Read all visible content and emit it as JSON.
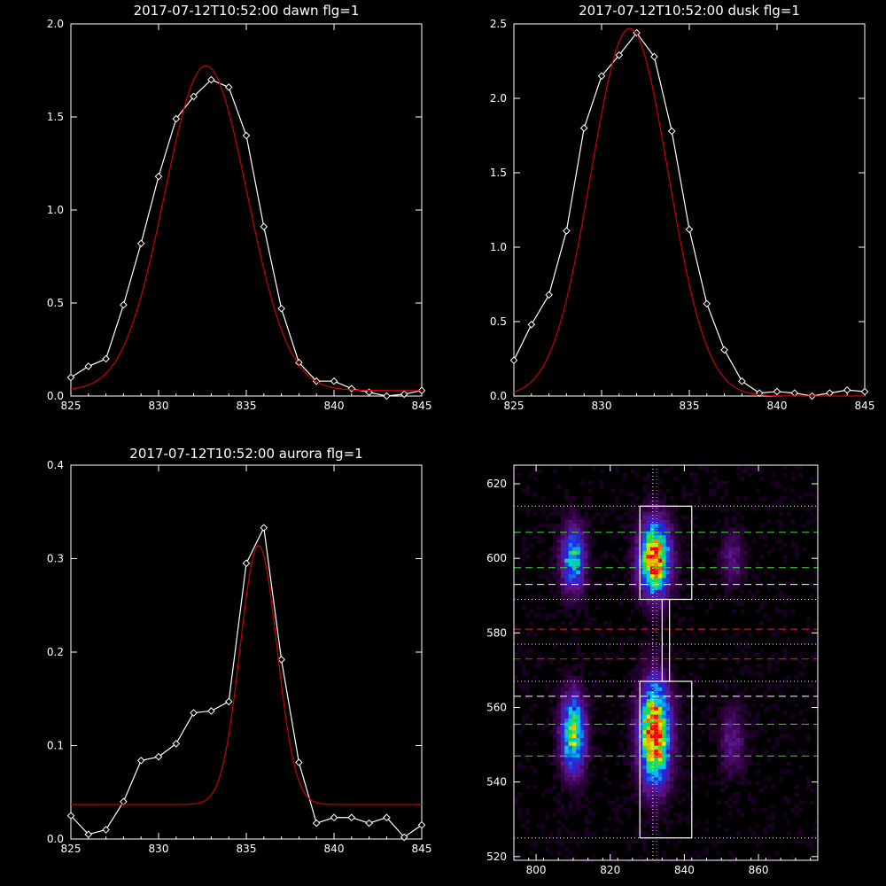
{
  "chart_data": [
    {
      "type": "line",
      "title": "2017-07-12T10:52:00 dawn flg=1",
      "xlim": [
        825,
        845
      ],
      "ylim": [
        0,
        2.0
      ],
      "xticks": [
        "825",
        "830",
        "835",
        "840",
        "845"
      ],
      "yticks": [
        "0.0",
        "0.5",
        "1.0",
        "1.5",
        "2.0"
      ],
      "series": [
        {
          "style": "measured",
          "color": "#ffffff",
          "x": [
            825,
            826,
            827,
            828,
            829,
            830,
            831,
            832,
            833,
            834,
            835,
            836,
            837,
            838,
            839,
            840,
            841,
            842,
            843,
            844,
            845
          ],
          "values": [
            0.1,
            0.16,
            0.2,
            0.49,
            0.82,
            1.18,
            1.49,
            1.61,
            1.7,
            1.66,
            1.4,
            0.91,
            0.47,
            0.18,
            0.08,
            0.08,
            0.04,
            0.02,
            0.0,
            0.01,
            0.03
          ]
        },
        {
          "style": "gaussian-fit",
          "color": "#cc0000",
          "fit": {
            "amplitude": 1.745,
            "center": 832.7,
            "sigma": 2.35,
            "baseline": 0.03
          }
        }
      ]
    },
    {
      "type": "line",
      "title": "2017-07-12T10:52:00 dusk flg=1",
      "xlim": [
        825,
        845
      ],
      "ylim": [
        0,
        2.5
      ],
      "xticks": [
        "825",
        "830",
        "835",
        "840",
        "845"
      ],
      "yticks": [
        "0.0",
        "0.5",
        "1.0",
        "1.5",
        "2.0",
        "2.5"
      ],
      "series": [
        {
          "style": "measured",
          "color": "#ffffff",
          "x": [
            825,
            826,
            827,
            828,
            829,
            830,
            831,
            832,
            833,
            834,
            835,
            836,
            837,
            838,
            839,
            840,
            841,
            842,
            843,
            844,
            845
          ],
          "values": [
            0.24,
            0.48,
            0.68,
            1.11,
            1.8,
            2.15,
            2.29,
            2.44,
            2.28,
            1.78,
            1.12,
            0.62,
            0.31,
            0.1,
            0.02,
            0.03,
            0.02,
            0.0,
            0.02,
            0.04,
            0.03
          ]
        },
        {
          "style": "gaussian-fit",
          "color": "#cc0000",
          "fit": {
            "amplitude": 2.47,
            "center": 831.6,
            "sigma": 2.2,
            "baseline": 0.0
          }
        }
      ]
    },
    {
      "type": "line",
      "title": "2017-07-12T10:52:00 aurora flg=1",
      "xlim": [
        825,
        845
      ],
      "ylim": [
        0,
        0.4
      ],
      "xticks": [
        "825",
        "830",
        "835",
        "840",
        "845"
      ],
      "yticks": [
        "0.0",
        "0.1",
        "0.2",
        "0.3",
        "0.4"
      ],
      "series": [
        {
          "style": "measured",
          "color": "#ffffff",
          "x": [
            825,
            826,
            827,
            828,
            829,
            830,
            831,
            832,
            833,
            834,
            835,
            836,
            837,
            838,
            839,
            840,
            841,
            842,
            843,
            844,
            845
          ],
          "values": [
            0.025,
            0.005,
            0.01,
            0.04,
            0.084,
            0.088,
            0.102,
            0.135,
            0.137,
            0.147,
            0.295,
            0.333,
            0.192,
            0.082,
            0.017,
            0.023,
            0.023,
            0.017,
            0.023,
            0.002,
            0.015
          ]
        },
        {
          "style": "gaussian-fit",
          "color": "#cc0000",
          "fit": {
            "amplitude": 0.277,
            "center": 835.7,
            "sigma": 1.05,
            "baseline": 0.037
          }
        }
      ]
    },
    {
      "type": "heatmap",
      "title": "",
      "xlim": [
        794,
        876
      ],
      "ylim": [
        519,
        625
      ],
      "xticks": [
        "800",
        "820",
        "840",
        "860"
      ],
      "yticks": [
        "520",
        "540",
        "560",
        "580",
        "600",
        "620"
      ],
      "blobs": [
        {
          "x": 810,
          "y": 600,
          "sx": 2.2,
          "sy": 6,
          "amp": 0.55
        },
        {
          "x": 810,
          "y": 553,
          "sx": 2.2,
          "sy": 7,
          "amp": 0.7
        },
        {
          "x": 832,
          "y": 600,
          "sx": 2.8,
          "sy": 6.5,
          "amp": 0.95
        },
        {
          "x": 832,
          "y": 553,
          "sx": 2.8,
          "sy": 9,
          "amp": 1.0
        },
        {
          "x": 853,
          "y": 600,
          "sx": 2.2,
          "sy": 5,
          "amp": 0.18
        },
        {
          "x": 853,
          "y": 551,
          "sx": 2.2,
          "sy": 6,
          "amp": 0.2
        }
      ],
      "rectangles": [
        {
          "x0": 828,
          "x1": 842,
          "y0": 589,
          "y1": 614,
          "color": "#ffffff"
        },
        {
          "x0": 828,
          "x1": 842,
          "y0": 525,
          "y1": 567,
          "color": "#ffffff"
        },
        {
          "x0": 834,
          "x1": 836,
          "y0": 567,
          "y1": 589,
          "color": "#ffffff"
        }
      ],
      "hlines": [
        {
          "y": 614,
          "color": "#ffffff",
          "style": "dotted"
        },
        {
          "y": 607,
          "color": "#33dd33",
          "style": "dashed"
        },
        {
          "y": 597.5,
          "color": "#33dd33",
          "style": "dashed"
        },
        {
          "y": 593,
          "color": "#ffffff",
          "style": "dashed"
        },
        {
          "y": 589,
          "color": "#ffffff",
          "style": "dotted"
        },
        {
          "y": 581,
          "color": "#dd2222",
          "style": "dashed"
        },
        {
          "y": 577,
          "color": "#ffffff",
          "style": "dotted"
        },
        {
          "y": 573,
          "color": "#dd2222",
          "style": "dashed"
        },
        {
          "y": 567,
          "color": "#ffffff",
          "style": "dotted"
        },
        {
          "y": 563,
          "color": "#ffffff",
          "style": "dashed"
        },
        {
          "y": 555.5,
          "color": "#33dd33",
          "style": "dashed"
        },
        {
          "y": 547,
          "color": "#33dd33",
          "style": "dashed"
        },
        {
          "y": 525,
          "color": "#ffffff",
          "style": "dotted"
        }
      ],
      "vlines": [
        {
          "x": 831.5,
          "color": "#ffffff",
          "style": "dotted"
        },
        {
          "x": 832.5,
          "color": "#ff66ff",
          "style": "dotted"
        }
      ]
    }
  ]
}
